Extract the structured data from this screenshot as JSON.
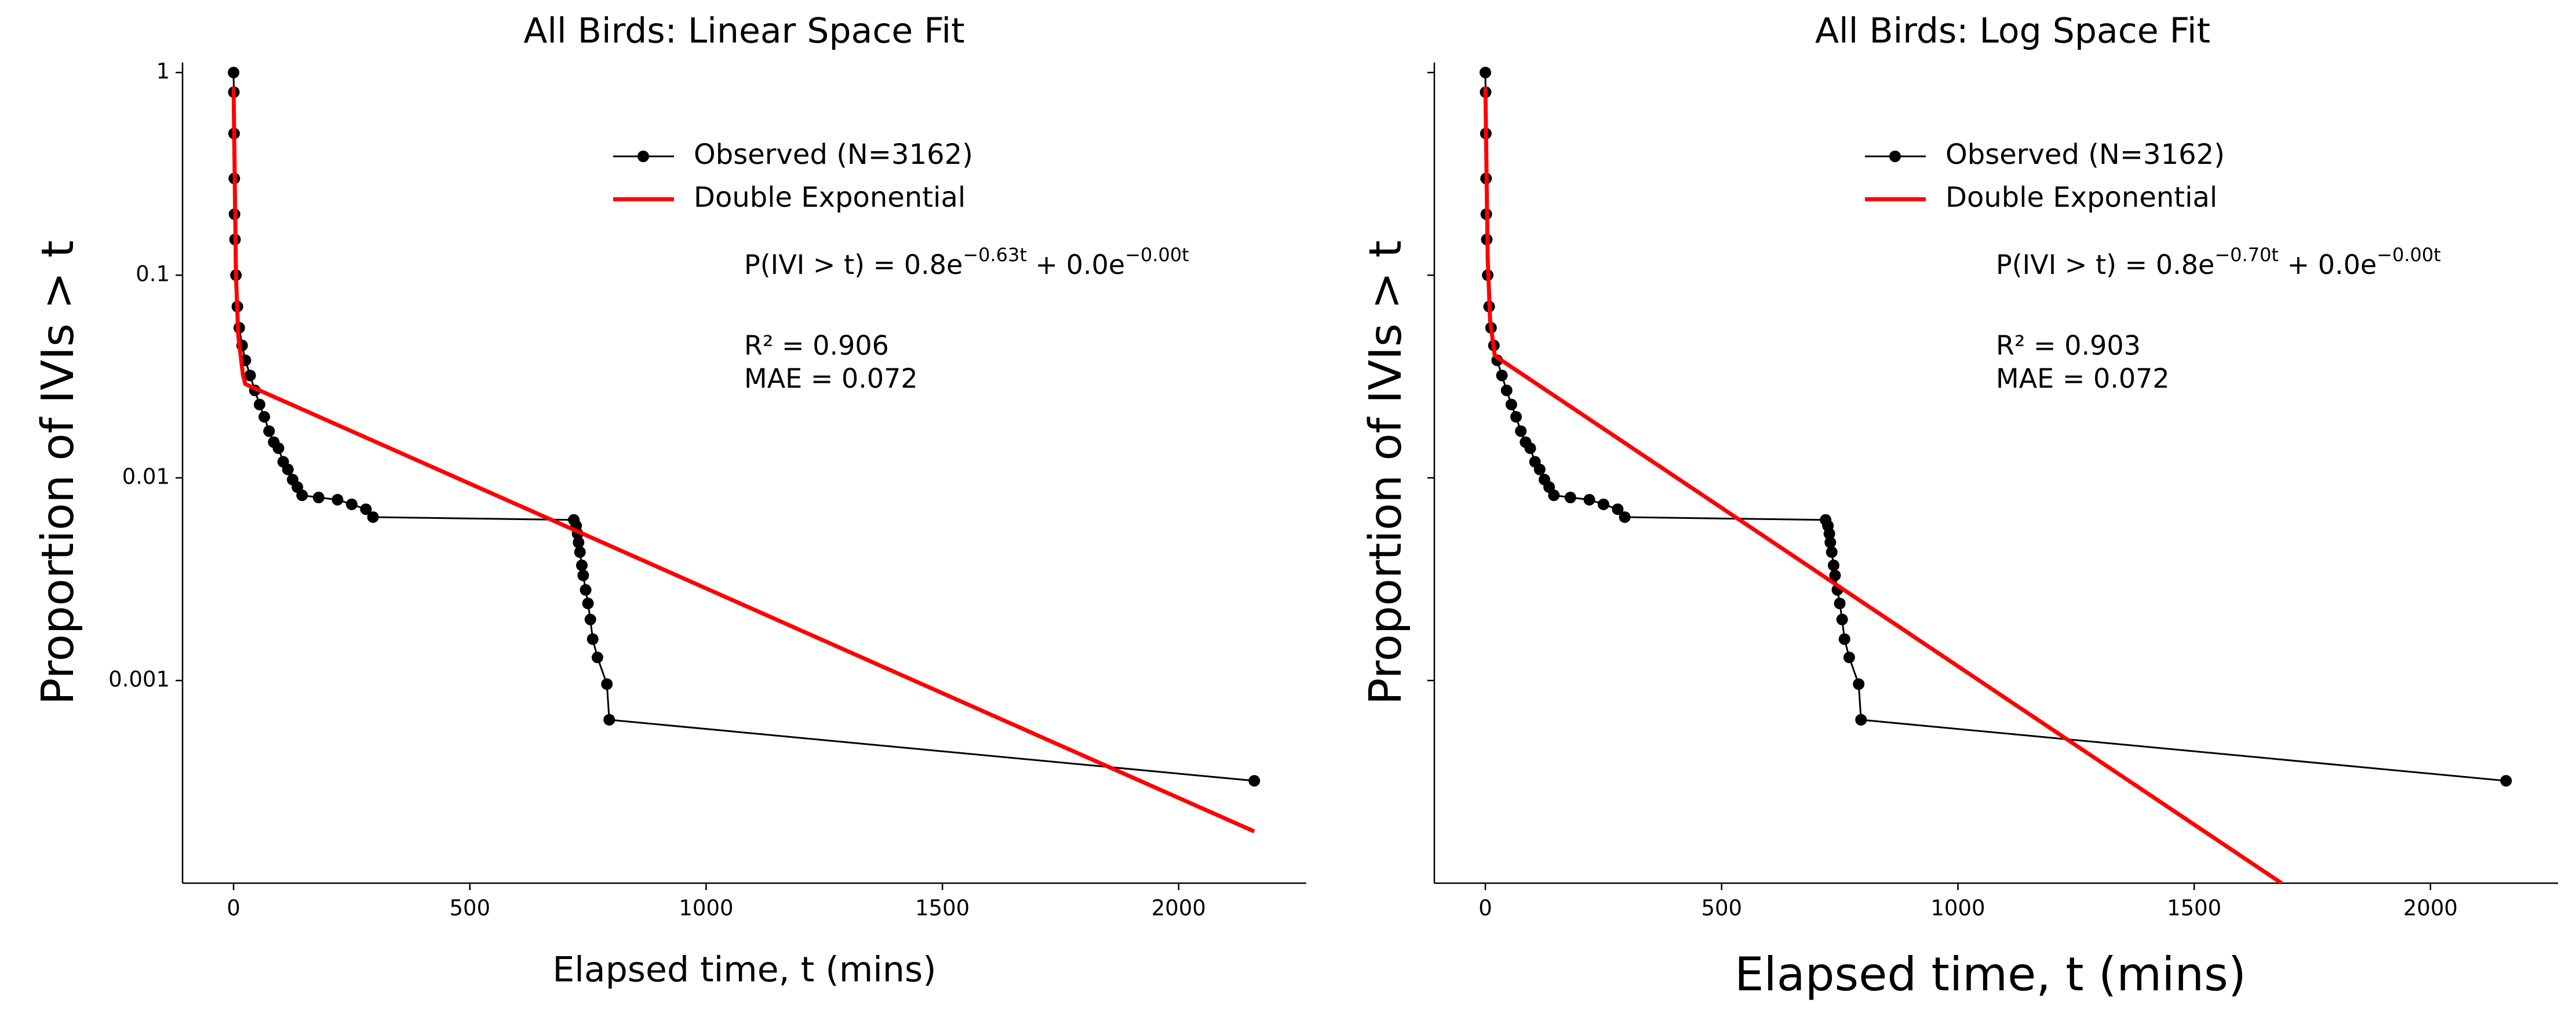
{
  "chart_data": [
    {
      "type": "line",
      "title": "All Birds: Linear Space Fit",
      "xlabel": "Elapsed time, t (mins)",
      "ylabel": "Proportion of IVIs > t",
      "xlim": [
        -108,
        2270
      ],
      "ylim": [
        0.0001,
        1.12
      ],
      "ylog": true,
      "xticks": [
        0,
        500,
        1000,
        1500,
        2000
      ],
      "yticks": [
        1,
        0.1,
        0.01,
        0.001
      ],
      "ytick_labels": true,
      "series": [
        {
          "name": "Observed (N=3162)",
          "color": "#000000",
          "marker": true,
          "x": [
            0,
            0.5,
            1,
            1.5,
            2,
            3,
            5,
            8,
            12,
            18,
            25,
            35,
            45,
            55,
            65,
            75,
            85,
            95,
            105,
            115,
            125,
            135,
            145,
            180,
            220,
            250,
            280,
            295,
            720,
            725,
            728,
            730,
            733,
            737,
            740,
            745,
            750,
            755,
            760,
            770,
            790,
            795,
            2160
          ],
          "values": [
            1,
            0.8,
            0.5,
            0.3,
            0.2,
            0.15,
            0.1,
            0.07,
            0.055,
            0.045,
            0.038,
            0.032,
            0.027,
            0.023,
            0.02,
            0.017,
            0.015,
            0.014,
            0.012,
            0.011,
            0.0098,
            0.009,
            0.0082,
            0.008,
            0.0078,
            0.0074,
            0.007,
            0.0064,
            0.0062,
            0.0058,
            0.0053,
            0.0048,
            0.0043,
            0.0037,
            0.0033,
            0.0028,
            0.0024,
            0.002,
            0.0016,
            0.0013,
            0.00096,
            0.00064,
            0.00032
          ]
        },
        {
          "name": "Double Exponential",
          "color": "#ff0000",
          "marker": false,
          "x": [
            0,
            5,
            10,
            20,
            25,
            2160
          ],
          "values": [
            0.85,
            0.1,
            0.05,
            0.032,
            0.029,
            0.00018
          ]
        }
      ],
      "equation": [
        "P(IVI > t) = 0.8e",
        "−0.63t",
        " + 0.0e",
        "−0.00t"
      ],
      "r2": "R² = 0.906",
      "mae": "MAE = 0.072"
    },
    {
      "type": "line",
      "title": "All Birds: Log Space Fit",
      "xlabel": "Elapsed time, t (mins)",
      "ylabel": "Proportion of IVIs > t",
      "xlim": [
        -108,
        2270
      ],
      "ylim": [
        0.0001,
        1.12
      ],
      "ylog": true,
      "xticks": [
        0,
        500,
        1000,
        1500,
        2000
      ],
      "yticks": [
        1,
        0.1,
        0.01,
        0.001
      ],
      "ytick_labels": false,
      "series": [
        {
          "name": "Observed (N=3162)",
          "color": "#000000",
          "marker": true,
          "x": [
            0,
            0.5,
            1,
            1.5,
            2,
            3,
            5,
            8,
            12,
            18,
            25,
            35,
            45,
            55,
            65,
            75,
            85,
            95,
            105,
            115,
            125,
            135,
            145,
            180,
            220,
            250,
            280,
            295,
            720,
            725,
            728,
            730,
            733,
            737,
            740,
            745,
            750,
            755,
            760,
            770,
            790,
            795,
            2160
          ],
          "values": [
            1,
            0.8,
            0.5,
            0.3,
            0.2,
            0.15,
            0.1,
            0.07,
            0.055,
            0.045,
            0.038,
            0.032,
            0.027,
            0.023,
            0.02,
            0.017,
            0.015,
            0.014,
            0.012,
            0.011,
            0.0098,
            0.009,
            0.0082,
            0.008,
            0.0078,
            0.0074,
            0.007,
            0.0064,
            0.0062,
            0.0058,
            0.0053,
            0.0048,
            0.0043,
            0.0037,
            0.0033,
            0.0028,
            0.0024,
            0.002,
            0.0016,
            0.0013,
            0.00096,
            0.00064,
            0.00032
          ]
        },
        {
          "name": "Double Exponential",
          "color": "#ff0000",
          "marker": false,
          "x": [
            0,
            5,
            10,
            20,
            1685
          ],
          "values": [
            0.85,
            0.12,
            0.06,
            0.04,
            0.0001
          ]
        }
      ],
      "equation": [
        "P(IVI > t) = 0.8e",
        "−0.70t",
        " + 0.0e",
        "−0.00t"
      ],
      "r2": "R² = 0.903",
      "mae": "MAE = 0.072"
    }
  ]
}
